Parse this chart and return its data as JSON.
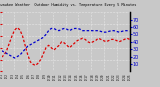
{
  "title": "Milwaukee Weather  Outdoor Humidity vs. Temperature Every 5 Minutes",
  "bg_color": "#c8c8c8",
  "plot_bg": "#c8c8c8",
  "grid_color": "#ffffff",
  "temp_color": "#dd0000",
  "humid_color": "#0000cc",
  "right_axis_color": "#000000",
  "temp_ylim": [
    30,
    80
  ],
  "humid_ylim": [
    0,
    80
  ],
  "temp_yticks": [
    30,
    40,
    50,
    60,
    70,
    80
  ],
  "humid_yticks": [
    10,
    20,
    30,
    40,
    50,
    60,
    70
  ],
  "temp_data": [
    42,
    44,
    48,
    54,
    60,
    65,
    67,
    65,
    60,
    52,
    44,
    38,
    36,
    35,
    37,
    40,
    45,
    50,
    52,
    50,
    48,
    50,
    52,
    55,
    54,
    52,
    50,
    52,
    54,
    56,
    57,
    58,
    57,
    55,
    54,
    55,
    56,
    58,
    57,
    56,
    55,
    56,
    57,
    57,
    56,
    55,
    56,
    57,
    58,
    57
  ],
  "humid_data": [
    28,
    26,
    24,
    22,
    20,
    18,
    20,
    22,
    26,
    30,
    34,
    36,
    38,
    40,
    42,
    44,
    46,
    50,
    55,
    58,
    58,
    56,
    55,
    57,
    58,
    57,
    55,
    57,
    58,
    58,
    57,
    55,
    55,
    55,
    55,
    55,
    55,
    55,
    54,
    53,
    53,
    54,
    55,
    55,
    54,
    53,
    54,
    55,
    55,
    54
  ],
  "n_points": 50,
  "linewidth": 0.9,
  "markersize": 1.2,
  "title_fontsize": 2.6,
  "tick_fontsize": 3.5,
  "xtick_fontsize": 2.0
}
